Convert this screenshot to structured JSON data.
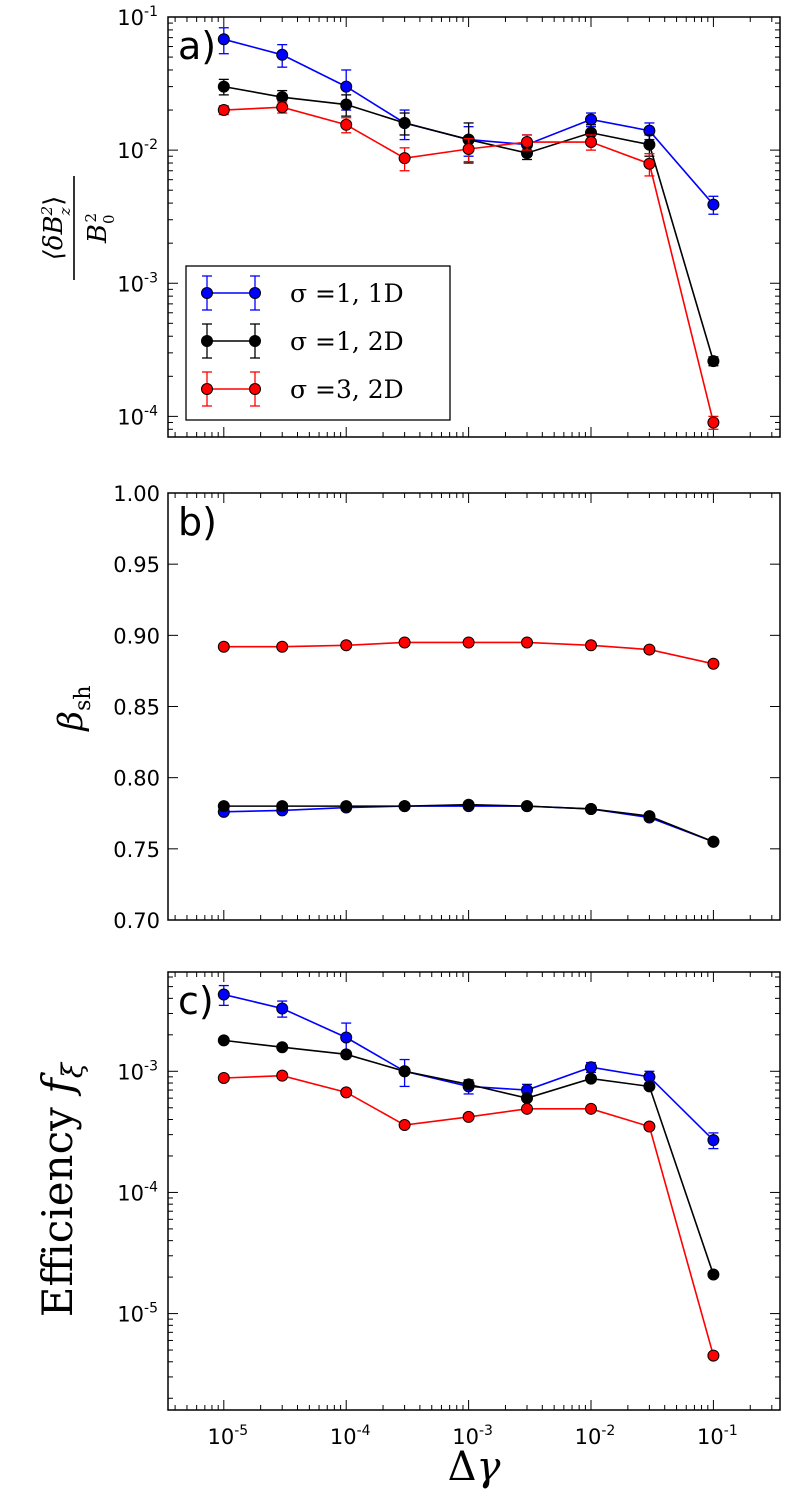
{
  "chart_data": [
    {
      "type": "line",
      "panel_label": "a)",
      "ylabel": "⟨δB_z²⟩ / B_0²",
      "yscale": "log",
      "xscale": "log",
      "ylim": [
        7e-05,
        0.1
      ],
      "xlim": [
        3.5e-06,
        0.35
      ],
      "yticks": [
        {
          "base": "10",
          "exp": "-4",
          "value": 0.0001
        },
        {
          "base": "10",
          "exp": "-3",
          "value": 0.001
        },
        {
          "base": "10",
          "exp": "-2",
          "value": 0.01
        },
        {
          "base": "10",
          "exp": "-1",
          "value": 0.1
        }
      ],
      "legend_position": "lower-left",
      "x": [
        1e-05,
        3e-05,
        0.0001,
        0.0003,
        0.001,
        0.003,
        0.01,
        0.03,
        0.1
      ],
      "series": [
        {
          "name": "σ =1, 1D",
          "color": "#0000ff",
          "values": [
            0.068,
            0.052,
            0.03,
            0.016,
            0.012,
            0.011,
            0.017,
            0.014,
            0.0039
          ],
          "errors": [
            0.015,
            0.01,
            0.01,
            0.004,
            0.003,
            0.002,
            0.002,
            0.002,
            0.0006
          ]
        },
        {
          "name": "σ =1, 2D",
          "color": "#000000",
          "values": [
            0.03,
            0.025,
            0.022,
            0.016,
            0.012,
            0.0095,
            0.0135,
            0.011,
            0.00026
          ],
          "errors": [
            0.004,
            0.003,
            0.004,
            0.003,
            0.004,
            0.001,
            0.002,
            0.002,
            2e-05
          ]
        },
        {
          "name": "σ =3, 2D",
          "color": "#ff0000",
          "values": [
            0.02,
            0.021,
            0.0155,
            0.0087,
            0.0102,
            0.0115,
            0.0115,
            0.0079,
            9e-05
          ],
          "errors": [
            0.0015,
            0.002,
            0.002,
            0.0017,
            0.002,
            0.0015,
            0.0015,
            0.0015,
            1e-05
          ]
        }
      ]
    },
    {
      "type": "line",
      "panel_label": "b)",
      "ylabel": "β_sh",
      "yscale": "linear",
      "xscale": "log",
      "ylim": [
        0.7,
        1.0
      ],
      "xlim": [
        3.5e-06,
        0.35
      ],
      "yticks": [
        "0.70",
        "0.75",
        "0.80",
        "0.85",
        "0.90",
        "0.95",
        "1.00"
      ],
      "x": [
        1e-05,
        3e-05,
        0.0001,
        0.0003,
        0.001,
        0.003,
        0.01,
        0.03,
        0.1
      ],
      "series": [
        {
          "name": "σ =1, 1D",
          "color": "#0000ff",
          "values": [
            0.776,
            0.777,
            0.779,
            0.78,
            0.78,
            0.78,
            0.778,
            0.772,
            0.755
          ]
        },
        {
          "name": "σ =1, 2D",
          "color": "#000000",
          "values": [
            0.78,
            0.78,
            0.78,
            0.78,
            0.781,
            0.78,
            0.778,
            0.773,
            0.755
          ]
        },
        {
          "name": "σ =3, 2D",
          "color": "#ff0000",
          "values": [
            0.892,
            0.892,
            0.893,
            0.895,
            0.895,
            0.895,
            0.893,
            0.89,
            0.88
          ]
        }
      ]
    },
    {
      "type": "line",
      "panel_label": "c)",
      "ylabel": "Efficiency f_ξ",
      "xlabel": "Δγ",
      "yscale": "log",
      "xscale": "log",
      "ylim": [
        1.6e-06,
        0.0066
      ],
      "xlim": [
        3.5e-06,
        0.35
      ],
      "yticks": [
        {
          "base": "10",
          "exp": "-5",
          "value": 1e-05
        },
        {
          "base": "10",
          "exp": "-4",
          "value": 0.0001
        },
        {
          "base": "10",
          "exp": "-3",
          "value": 0.001
        }
      ],
      "xticks": [
        {
          "base": "10",
          "exp": "-5",
          "value": 1e-05
        },
        {
          "base": "10",
          "exp": "-4",
          "value": 0.0001
        },
        {
          "base": "10",
          "exp": "-3",
          "value": 0.001
        },
        {
          "base": "10",
          "exp": "-2",
          "value": 0.01
        },
        {
          "base": "10",
          "exp": "-1",
          "value": 0.1
        }
      ],
      "x": [
        1e-05,
        3e-05,
        0.0001,
        0.0003,
        0.001,
        0.003,
        0.01,
        0.03,
        0.1
      ],
      "series": [
        {
          "name": "σ =1, 1D",
          "color": "#0000ff",
          "values": [
            0.0043,
            0.0033,
            0.0019,
            0.001,
            0.00075,
            0.0007,
            0.00108,
            0.0009,
            0.00027
          ],
          "errors": [
            0.0008,
            0.0005,
            0.0006,
            0.00025,
            0.0001,
            8e-05,
            0.0001,
            0.0001,
            4e-05
          ]
        },
        {
          "name": "σ =1, 2D",
          "color": "#000000",
          "values": [
            0.0018,
            0.00158,
            0.00138,
            0.001,
            0.00078,
            0.0006,
            0.00087,
            0.00075,
            2.1e-05
          ]
        },
        {
          "name": "σ =3, 2D",
          "color": "#ff0000",
          "values": [
            0.00088,
            0.00092,
            0.00067,
            0.00036,
            0.00042,
            0.00049,
            0.00049,
            0.00035,
            4.5e-06
          ]
        }
      ]
    }
  ]
}
